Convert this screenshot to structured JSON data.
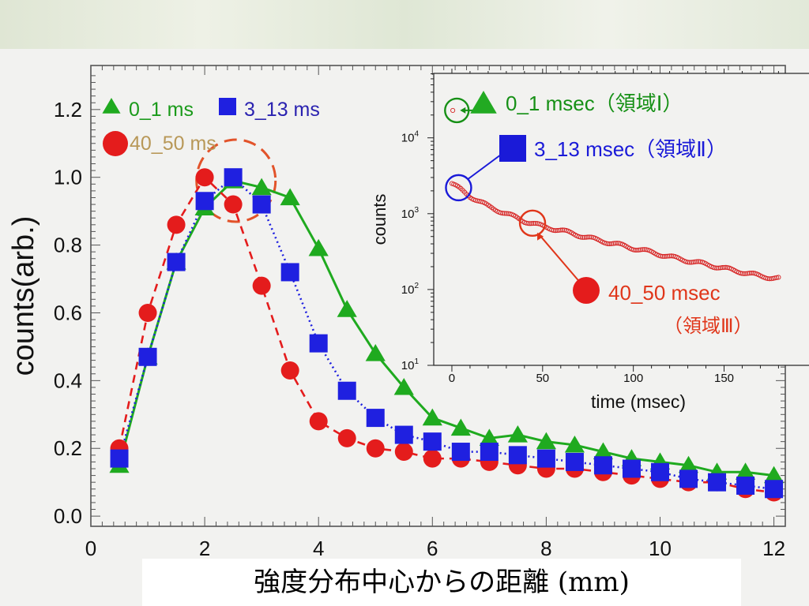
{
  "chart_data": [
    {
      "type": "line",
      "xlabel": "強度分布中心からの距離 (mm)",
      "ylabel": "counts(arb.)",
      "xlim": [
        0,
        12.2
      ],
      "ylim": [
        -0.03,
        1.33
      ],
      "x_ticks": [
        "0",
        "2",
        "4",
        "6",
        "8",
        "10",
        "12"
      ],
      "y_ticks": [
        "0.0",
        "0.2",
        "0.4",
        "0.6",
        "0.8",
        "1.0",
        "1.2"
      ],
      "grid": false,
      "legend_position": "top-left",
      "series": [
        {
          "name": "0_1 ms",
          "color": "#1faa1f",
          "marker": "triangle",
          "line": "solid",
          "x": [
            0.5,
            1.0,
            1.5,
            2.0,
            2.5,
            3.0,
            3.5,
            4.0,
            4.5,
            5.0,
            5.5,
            6.0,
            6.5,
            7.0,
            7.5,
            8.0,
            8.5,
            9.0,
            9.5,
            10.0,
            10.5,
            11.0,
            11.5,
            12.0
          ],
          "y": [
            0.15,
            0.47,
            0.75,
            0.91,
            0.99,
            0.97,
            0.94,
            0.79,
            0.61,
            0.48,
            0.38,
            0.29,
            0.26,
            0.23,
            0.24,
            0.22,
            0.21,
            0.19,
            0.17,
            0.16,
            0.15,
            0.13,
            0.13,
            0.12
          ]
        },
        {
          "name": "3_13 ms",
          "color": "#1f20e0",
          "marker": "square",
          "line": "dotted",
          "x": [
            0.5,
            1.0,
            1.5,
            2.0,
            2.5,
            3.0,
            3.5,
            4.0,
            4.5,
            5.0,
            5.5,
            6.0,
            6.5,
            7.0,
            7.5,
            8.0,
            8.5,
            9.0,
            9.5,
            10.0,
            10.5,
            11.0,
            11.5,
            12.0
          ],
          "y": [
            0.17,
            0.47,
            0.75,
            0.93,
            1.0,
            0.92,
            0.72,
            0.51,
            0.37,
            0.29,
            0.24,
            0.22,
            0.19,
            0.19,
            0.18,
            0.17,
            0.16,
            0.15,
            0.14,
            0.13,
            0.11,
            0.1,
            0.09,
            0.08
          ]
        },
        {
          "name": "40_50 ms",
          "color": "#e41c1c",
          "marker": "circle",
          "line": "dashed",
          "x": [
            0.5,
            1.0,
            1.5,
            2.0,
            2.5,
            3.0,
            3.5,
            4.0,
            4.5,
            5.0,
            5.5,
            6.0,
            6.5,
            7.0,
            7.5,
            8.0,
            8.5,
            9.0,
            9.5,
            10.0,
            10.5,
            11.0,
            11.5,
            12.0
          ],
          "y": [
            0.2,
            0.6,
            0.86,
            1.0,
            0.92,
            0.68,
            0.43,
            0.28,
            0.23,
            0.2,
            0.19,
            0.17,
            0.17,
            0.16,
            0.15,
            0.14,
            0.14,
            0.13,
            0.12,
            0.11,
            0.1,
            0.1,
            0.08,
            0.07
          ]
        }
      ],
      "legend": [
        {
          "label": "0_1 ms",
          "color": "#1faa1f",
          "text_color": "#1a9a1a",
          "marker": "triangle"
        },
        {
          "label": "3_13 ms",
          "color": "#1f20e0",
          "text_color": "#2a22b0",
          "marker": "square"
        },
        {
          "label": "40_50 ms",
          "color": "#e41c1c",
          "text_color": "#b89858",
          "marker": "circle"
        }
      ],
      "highlight_color": "#e2532a"
    },
    {
      "type": "scatter",
      "xlabel": "time (msec)",
      "ylabel": "counts",
      "xlim": [
        -10,
        182
      ],
      "ylog": true,
      "ylim_exponents": [
        1,
        4.85
      ],
      "x_ticks": [
        "0",
        "50",
        "100",
        "150"
      ],
      "y_ticks": [
        "10",
        "10",
        "10",
        "10"
      ],
      "y_tick_exponents": [
        "1",
        "2",
        "3",
        "4"
      ],
      "color": "#d62020",
      "points": {
        "x": [
          0,
          10,
          20,
          30,
          40,
          50,
          60,
          70,
          80,
          90,
          100,
          110,
          120,
          130,
          140,
          150,
          160,
          170,
          180
        ],
        "y": [
          2500,
          1700,
          1250,
          1000,
          800,
          680,
          600,
          520,
          450,
          400,
          350,
          310,
          270,
          240,
          215,
          190,
          170,
          150,
          140
        ]
      },
      "annotations": [
        {
          "label": "0_1 msec（領域Ⅰ）",
          "color": "#169016",
          "marker": "triangle",
          "x": 1,
          "y": 23000
        },
        {
          "label": "3_13 msec（領域Ⅱ）",
          "color": "#1a1ad8",
          "marker": "square",
          "x": 5,
          "y": 2200
        },
        {
          "label": "40_50 msec",
          "label2": "（領域Ⅲ）",
          "color": "#e0361a",
          "marker": "circle",
          "x": 44,
          "y": 750
        }
      ]
    }
  ]
}
